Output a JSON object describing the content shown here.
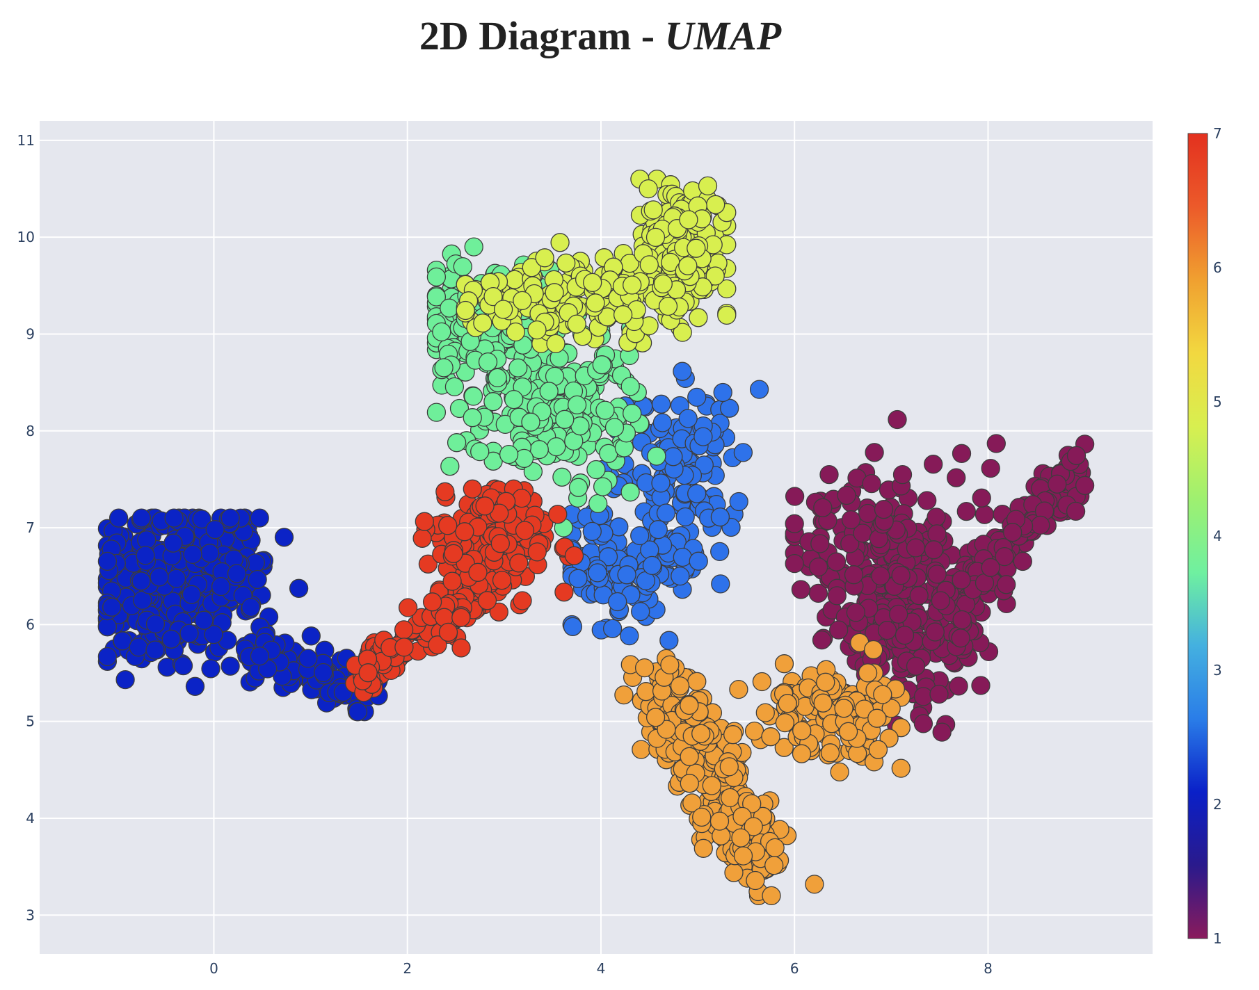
{
  "chart_data": {
    "type": "scatter",
    "title_main": "2D Diagram - ",
    "title_emph": "UMAP",
    "xlabel": "",
    "ylabel": "",
    "xlim": [
      -1.8,
      9.7
    ],
    "ylim": [
      2.6,
      11.2
    ],
    "x_ticks": [
      "0",
      "2",
      "4",
      "6",
      "8"
    ],
    "y_ticks": [
      "3",
      "4",
      "5",
      "6",
      "7",
      "8",
      "9",
      "10",
      "11"
    ],
    "grid": true,
    "plot_background": "#e5e7ee",
    "marker_edge": "#3d3d3d",
    "colorscale": [
      "#8a1b5c",
      "#2a1a8c",
      "#0a20c8",
      "#2a7de8",
      "#44b0e0",
      "#6ff0a0",
      "#9ef070",
      "#d8ef50",
      "#f2d840",
      "#f0a030",
      "#ec5a2a",
      "#e3311f"
    ],
    "colorbar": {
      "min": 1,
      "max": 7,
      "ticks": [
        "1",
        "2",
        "3",
        "4",
        "5",
        "6",
        "7"
      ]
    },
    "clusters": [
      {
        "label": 1,
        "color": "#861a58",
        "n": 520,
        "region": "right",
        "x_range": [
          6.0,
          9.0
        ],
        "y_range": [
          4.6,
          8.3
        ]
      },
      {
        "label": 2,
        "color": "#0b23c6",
        "n": 520,
        "region": "left",
        "x_range": [
          -1.1,
          1.7
        ],
        "y_range": [
          5.1,
          7.1
        ]
      },
      {
        "label": 3,
        "color": "#2e72ea",
        "n": 260,
        "region": "center",
        "x_range": [
          3.7,
          6.0
        ],
        "y_range": [
          5.8,
          8.9
        ]
      },
      {
        "label": 4,
        "color": "#6fef9a",
        "n": 420,
        "region": "center-left",
        "x_range": [
          2.3,
          5.4
        ],
        "y_range": [
          7.0,
          9.9
        ]
      },
      {
        "label": 5,
        "color": "#d8ef4f",
        "n": 380,
        "region": "top",
        "x_range": [
          2.6,
          5.3
        ],
        "y_range": [
          8.9,
          10.6
        ]
      },
      {
        "label": 6,
        "color": "#f0a03a",
        "n": 460,
        "region": "bottom-center",
        "x_range": [
          3.9,
          7.1
        ],
        "y_range": [
          3.2,
          6.3
        ]
      },
      {
        "label": 7,
        "color": "#e53a22",
        "n": 300,
        "region": "bridge",
        "x_range": [
          1.4,
          3.9
        ],
        "y_range": [
          5.3,
          7.4
        ]
      }
    ]
  }
}
